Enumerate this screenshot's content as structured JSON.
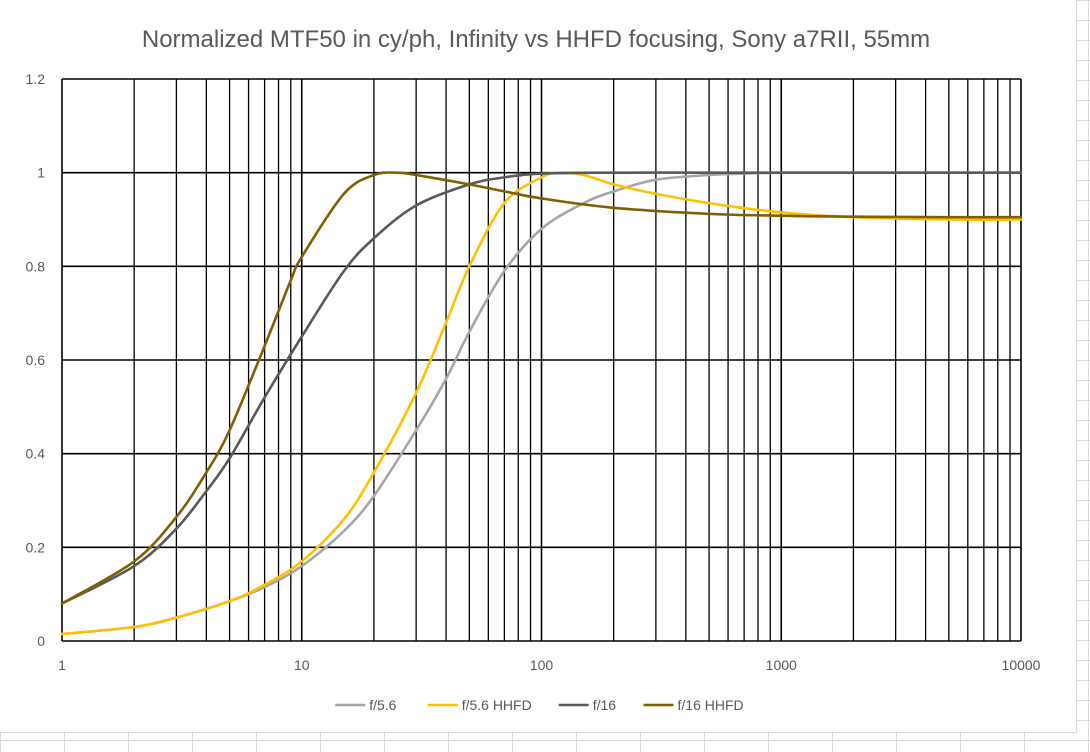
{
  "chart_data": {
    "type": "line",
    "title": "Normalized MTF50 in cy/ph, Infinity vs HHFD focusing, Sony a7RII, 55mm",
    "xlabel": "",
    "ylabel": "",
    "x_scale": "log",
    "xlim": [
      1,
      10000
    ],
    "ylim": [
      0,
      1.2
    ],
    "x_ticks": [
      "1",
      "10",
      "100",
      "1000",
      "10000"
    ],
    "y_ticks": [
      "0",
      "0.2",
      "0.4",
      "0.6",
      "0.8",
      "1",
      "1.2"
    ],
    "grid": true,
    "legend_position": "bottom",
    "series": [
      {
        "name": "f/5.6",
        "color": "#a6a6a6",
        "x": [
          1,
          2,
          3,
          5,
          7,
          10,
          15,
          20,
          30,
          40,
          50,
          70,
          100,
          150,
          200,
          300,
          500,
          700,
          1000,
          2000,
          5000,
          10000
        ],
        "y": [
          0.015,
          0.03,
          0.05,
          0.085,
          0.115,
          0.16,
          0.235,
          0.31,
          0.45,
          0.56,
          0.66,
          0.79,
          0.88,
          0.935,
          0.96,
          0.985,
          0.995,
          0.998,
          1.0,
          1.0,
          1.0,
          1.0
        ]
      },
      {
        "name": "f/5.6 HHFD",
        "color": "#ffc000",
        "x": [
          1,
          2,
          3,
          5,
          7,
          10,
          15,
          20,
          30,
          40,
          50,
          70,
          100,
          120,
          150,
          200,
          300,
          500,
          1000,
          2000,
          5000,
          10000
        ],
        "y": [
          0.015,
          0.03,
          0.05,
          0.085,
          0.12,
          0.17,
          0.26,
          0.36,
          0.53,
          0.68,
          0.8,
          0.935,
          0.99,
          1.0,
          0.995,
          0.975,
          0.955,
          0.935,
          0.915,
          0.905,
          0.9,
          0.9
        ]
      },
      {
        "name": "f/16",
        "color": "#595959",
        "x": [
          1,
          2,
          3,
          4,
          5,
          7,
          10,
          15,
          20,
          30,
          50,
          70,
          100,
          200,
          500,
          1000,
          10000
        ],
        "y": [
          0.08,
          0.16,
          0.24,
          0.32,
          0.39,
          0.52,
          0.65,
          0.79,
          0.86,
          0.93,
          0.975,
          0.99,
          0.998,
          1.0,
          1.0,
          1.0,
          1.0
        ]
      },
      {
        "name": "f/16 HHFD",
        "color": "#7f6000",
        "x": [
          1,
          2,
          3,
          4,
          5,
          7,
          9,
          10,
          15,
          20,
          25,
          30,
          50,
          70,
          100,
          200,
          500,
          1000,
          2000,
          5000,
          10000
        ],
        "y": [
          0.08,
          0.17,
          0.265,
          0.36,
          0.45,
          0.63,
          0.77,
          0.82,
          0.955,
          0.995,
          1.0,
          0.995,
          0.975,
          0.96,
          0.945,
          0.925,
          0.912,
          0.908,
          0.906,
          0.905,
          0.905
        ]
      }
    ]
  }
}
